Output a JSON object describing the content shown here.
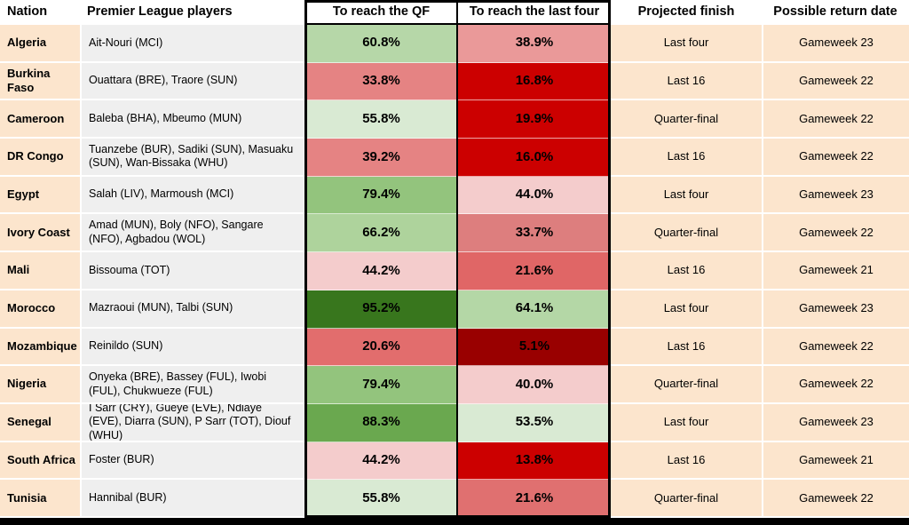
{
  "colors": {
    "header_bg": "#ffffff",
    "nation_column_bg": "#fce5cd",
    "players_column_bg": "#efefef",
    "info_columns_bg": "#fce5cd",
    "block_border": "#000000",
    "bottom_bar": "#000000",
    "text": "#000000"
  },
  "chart_data": {
    "type": "table",
    "columns": [
      "Nation",
      "Premier League players",
      "To reach the QF",
      "To reach the last four",
      "Projected finish",
      "Possible return date"
    ],
    "rows": [
      {
        "nation": "Algeria",
        "players": "Ait-Nouri (MCI)",
        "to_reach_qf": "60.8%",
        "qf_color": "#b6d7a8",
        "to_reach_last_four": "38.9%",
        "last_four_color": "#ea9999",
        "projected_finish": "Last four",
        "possible_return": "Gameweek 23"
      },
      {
        "nation": "Burkina Faso",
        "players": "Ouattara (BRE), Traore (SUN)",
        "to_reach_qf": "33.8%",
        "qf_color": "#e58383",
        "to_reach_last_four": "16.8%",
        "last_four_color": "#cc0000",
        "projected_finish": "Last 16",
        "possible_return": "Gameweek 22"
      },
      {
        "nation": "Cameroon",
        "players": "Baleba (BHA), Mbeumo (MUN)",
        "to_reach_qf": "55.8%",
        "qf_color": "#d9ead3",
        "to_reach_last_four": "19.9%",
        "last_four_color": "#cc0000",
        "projected_finish": "Quarter-final",
        "possible_return": "Gameweek 22"
      },
      {
        "nation": "DR Congo",
        "players": "Tuanzebe (BUR), Sadiki (SUN), Masuaku (SUN), Wan-Bissaka (WHU)",
        "to_reach_qf": "39.2%",
        "qf_color": "#e58383",
        "to_reach_last_four": "16.0%",
        "last_four_color": "#cc0000",
        "projected_finish": "Last 16",
        "possible_return": "Gameweek 22"
      },
      {
        "nation": "Egypt",
        "players": "Salah (LIV), Marmoush (MCI)",
        "to_reach_qf": "79.4%",
        "qf_color": "#93c47d",
        "to_reach_last_four": "44.0%",
        "last_four_color": "#f4cccc",
        "projected_finish": "Last four",
        "possible_return": "Gameweek 23"
      },
      {
        "nation": "Ivory Coast",
        "players": "Amad (MUN), Boly (NFO), Sangare (NFO), Agbadou (WOL)",
        "to_reach_qf": "66.2%",
        "qf_color": "#aed39c",
        "to_reach_last_four": "33.7%",
        "last_four_color": "#dd7e7e",
        "projected_finish": "Quarter-final",
        "possible_return": "Gameweek 22"
      },
      {
        "nation": "Mali",
        "players": "Bissouma (TOT)",
        "to_reach_qf": "44.2%",
        "qf_color": "#f4cccc",
        "to_reach_last_four": "21.6%",
        "last_four_color": "#e06666",
        "projected_finish": "Last 16",
        "possible_return": "Gameweek 21"
      },
      {
        "nation": "Morocco",
        "players": "Mazraoui (MUN), Talbi (SUN)",
        "to_reach_qf": "95.2%",
        "qf_color": "#38761d",
        "to_reach_last_four": "64.1%",
        "last_four_color": "#b4d7a6",
        "projected_finish": "Last four",
        "possible_return": "Gameweek 23"
      },
      {
        "nation": "Mozambique",
        "players": "Reinildo (SUN)",
        "to_reach_qf": "20.6%",
        "qf_color": "#e26d6d",
        "to_reach_last_four": "5.1%",
        "last_four_color": "#990000",
        "projected_finish": "Last 16",
        "possible_return": "Gameweek 22"
      },
      {
        "nation": "Nigeria",
        "players": "Onyeka (BRE), Bassey (FUL), Iwobi (FUL), Chukwueze (FUL)",
        "to_reach_qf": "79.4%",
        "qf_color": "#93c47d",
        "to_reach_last_four": "40.0%",
        "last_four_color": "#f4cccc",
        "projected_finish": "Quarter-final",
        "possible_return": "Gameweek 22"
      },
      {
        "nation": "Senegal",
        "players": "I Sarr (CRY), Gueye (EVE), Ndiaye (EVE), Diarra (SUN), P Sarr (TOT), Diouf (WHU)",
        "to_reach_qf": "88.3%",
        "qf_color": "#6aa84f",
        "to_reach_last_four": "53.5%",
        "last_four_color": "#d9ead3",
        "projected_finish": "Last four",
        "possible_return": "Gameweek 23"
      },
      {
        "nation": "South Africa",
        "players": "Foster (BUR)",
        "to_reach_qf": "44.2%",
        "qf_color": "#f4cccc",
        "to_reach_last_four": "13.8%",
        "last_four_color": "#cc0000",
        "projected_finish": "Last 16",
        "possible_return": "Gameweek 21"
      },
      {
        "nation": "Tunisia",
        "players": "Hannibal (BUR)",
        "to_reach_qf": "55.8%",
        "qf_color": "#d9ead3",
        "to_reach_last_four": "21.6%",
        "last_four_color": "#e07070",
        "projected_finish": "Quarter-final",
        "possible_return": "Gameweek 22"
      }
    ]
  }
}
